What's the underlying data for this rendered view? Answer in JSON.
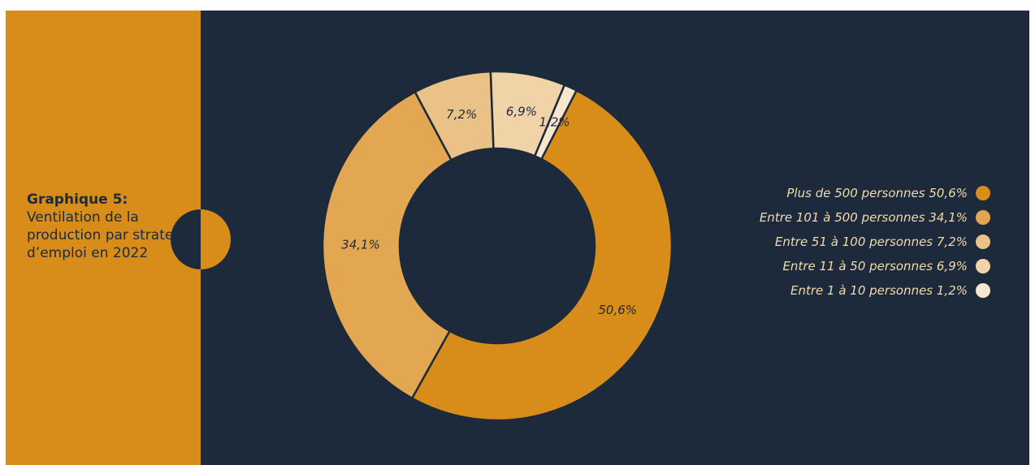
{
  "caption": {
    "title": "Graphique 5:",
    "text": "Ventilation de la production par strate d’emploi en 2022"
  },
  "colors": {
    "accent": "#d88c1a",
    "background": "#1c2a3b",
    "legend_text": "#f3d9ad"
  },
  "chart_data": {
    "type": "pie",
    "variant": "donut",
    "start_angle_deg": 27,
    "direction": "clockwise",
    "legend_position": "right",
    "categories": [
      "Plus de 500 personnes",
      "Entre 101 à 500 personnes",
      "Entre 51 à 100 personnes",
      "Entre 11 à 50 personnes",
      "Entre 1 à 10 personnes"
    ],
    "values": [
      50.6,
      34.1,
      7.2,
      6.9,
      1.2
    ],
    "value_labels": [
      "50,6%",
      "34,1%",
      "7,2%",
      "6,9%",
      "1,2%"
    ],
    "legend_labels": [
      "Plus de 500 personnes 50,6%",
      "Entre 101 à 500 personnes 34,1%",
      "Entre 51 à 100 personnes 7,2%",
      "Entre 11 à 50 personnes 6,9%",
      "Entre 1 à 10 personnes 1,2%"
    ],
    "colors": [
      "#d88c1a",
      "#e3a751",
      "#eac186",
      "#f0d4a8",
      "#f6e7cd"
    ]
  }
}
